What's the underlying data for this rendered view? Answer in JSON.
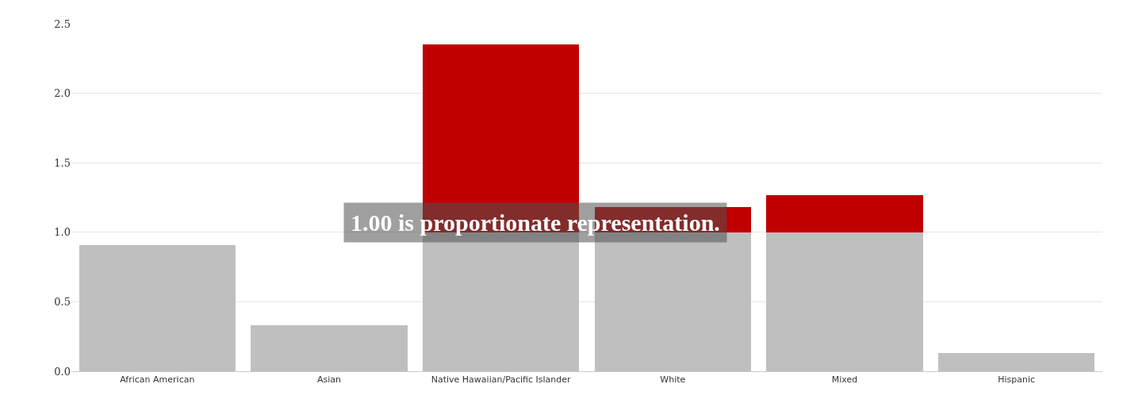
{
  "chart_data": {
    "type": "bar",
    "stacked": true,
    "categories": [
      "African American",
      "Asian",
      "Native Hawaiian/Pacific Islander",
      "White",
      "Mixed",
      "Hispanic"
    ],
    "series": [
      {
        "color": "#bfbfbf",
        "values": [
          0.91,
          0.33,
          1.0,
          1.0,
          1.0,
          0.13
        ]
      },
      {
        "color": "#c00000",
        "values": [
          null,
          null,
          1.35,
          0.18,
          0.27,
          null
        ]
      }
    ],
    "ylim": [
      0,
      2.5
    ],
    "yticks": [
      {
        "value": 0,
        "label": "0.0"
      },
      {
        "value": 0.5,
        "label": "0.5"
      },
      {
        "value": 1,
        "label": "1.0"
      },
      {
        "value": 1.5,
        "label": "1.5"
      },
      {
        "value": 2,
        "label": "2.0"
      },
      {
        "value": 2.5,
        "label": "2.5"
      }
    ],
    "grid": "y",
    "annotations": [
      "1.00 is proportionate representation."
    ]
  }
}
